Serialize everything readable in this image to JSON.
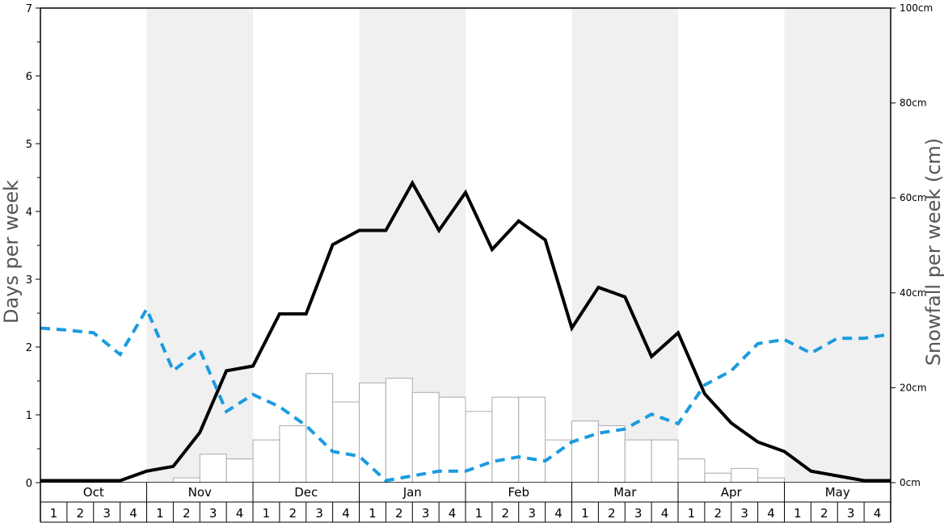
{
  "chart_data": {
    "type": "bar+line",
    "months": [
      "Oct",
      "Nov",
      "Dec",
      "Jan",
      "Feb",
      "Mar",
      "Apr",
      "May"
    ],
    "weeks": [
      "1",
      "2",
      "3",
      "4"
    ],
    "ylabel_left": "Days per week",
    "ylabel_right": "Snowfall per week (cm)",
    "ylim_left": [
      0,
      7
    ],
    "ylim_right": [
      0,
      100
    ],
    "left_ticks": [
      "0",
      "1",
      "2",
      "3",
      "4",
      "5",
      "6",
      "7"
    ],
    "right_ticks": [
      "0cm",
      "20cm",
      "40cm",
      "60cm",
      "80cm",
      "100cm"
    ],
    "shaded_months": [
      "Nov",
      "Jan",
      "Mar",
      "May"
    ],
    "series": [
      {
        "kind": "bar",
        "axis": "left",
        "values": [
          0,
          0,
          0,
          0,
          0,
          0.07,
          0.42,
          0.35,
          0.63,
          0.84,
          1.61,
          1.19,
          1.47,
          1.54,
          1.33,
          1.26,
          1.05,
          1.26,
          1.26,
          0.63,
          0.91,
          0.84,
          0.63,
          0.63,
          0.35,
          0.14,
          0.21,
          0.07,
          0,
          0,
          0,
          0
        ]
      },
      {
        "kind": "line",
        "style": "solid",
        "axis": "left",
        "color": "#000000",
        "values": [
          0.03,
          0.03,
          0.03,
          0.03,
          0.17,
          0.24,
          0.74,
          1.65,
          1.72,
          2.49,
          2.49,
          3.51,
          3.72,
          3.72,
          4.42,
          3.72,
          4.28,
          3.44,
          3.86,
          3.58,
          2.28,
          2.88,
          2.74,
          1.86,
          2.21,
          1.31,
          0.88,
          0.6,
          0.46,
          0.17,
          0.1,
          0.03,
          0.03
        ]
      },
      {
        "kind": "line",
        "style": "dashed",
        "axis": "left",
        "color": "#1a9be0",
        "values": [
          2.28,
          2.25,
          2.21,
          1.89,
          2.56,
          1.65,
          1.96,
          1.05,
          1.3,
          1.12,
          0.84,
          0.46,
          0.39,
          0.03,
          0.1,
          0.17,
          0.17,
          0.31,
          0.38,
          0.32,
          0.6,
          0.73,
          0.79,
          1.01,
          0.87,
          1.44,
          1.65,
          2.05,
          2.11,
          1.91,
          2.13,
          2.13,
          2.19
        ]
      }
    ]
  },
  "colors": {
    "shade": "#f0f0f0",
    "bar_fill": "#ffffff",
    "bar_stroke": "#aaaaaa",
    "solid_line": "#000000",
    "dashed_line": "#1a9be0"
  }
}
